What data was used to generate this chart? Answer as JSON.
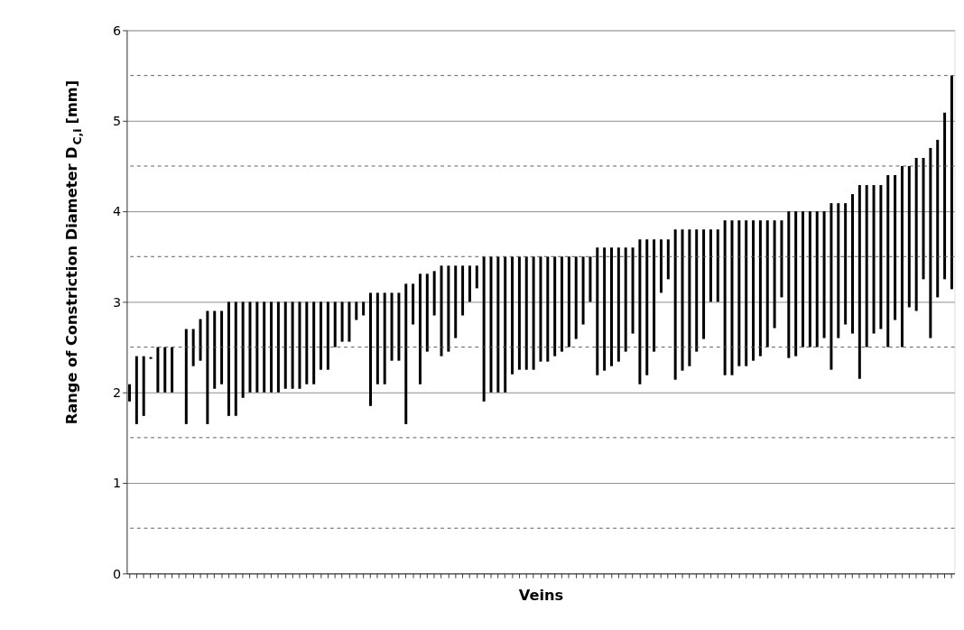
{
  "chart_data": {
    "type": "bar",
    "xlabel": "Veins",
    "ylabel": "Range of Constriction Diameter D$_{C,i}$ [mm]",
    "categories": [
      null,
      null,
      null,
      null,
      null,
      null,
      null,
      null,
      null,
      null,
      null,
      null,
      null,
      null,
      null,
      null,
      null,
      null,
      null,
      null,
      null,
      null,
      null,
      null,
      null,
      null,
      null,
      null,
      null,
      null,
      null,
      null,
      null,
      null,
      null,
      null,
      null,
      null,
      null,
      null,
      null,
      null,
      null,
      null,
      null,
      null,
      null,
      null,
      null,
      null,
      null,
      null,
      null,
      null,
      null,
      null,
      null,
      null,
      null,
      null,
      null,
      null,
      null,
      null,
      null,
      null,
      null,
      null,
      null,
      null,
      null,
      null,
      null,
      null,
      null,
      null,
      null,
      null,
      null,
      null,
      null,
      null,
      null,
      null,
      null,
      null,
      null,
      null,
      null,
      null,
      null,
      null,
      null,
      null,
      null,
      null,
      null,
      null,
      null,
      null,
      null,
      null,
      null,
      null,
      null,
      null,
      null,
      null,
      null,
      null,
      null,
      null,
      null,
      null,
      null,
      null,
      null
    ],
    "base": [
      1.9,
      1.65,
      1.74,
      2.37,
      2.0,
      2.0,
      2.0,
      null,
      1.65,
      2.29,
      2.35,
      1.65,
      2.04,
      2.09,
      1.74,
      1.74,
      1.94,
      2.0,
      2.0,
      2.0,
      2.0,
      2.0,
      2.04,
      2.04,
      2.04,
      2.09,
      2.09,
      2.25,
      2.25,
      2.5,
      2.56,
      2.56,
      2.8,
      2.85,
      1.85,
      2.09,
      2.09,
      2.35,
      2.35,
      1.65,
      2.75,
      2.09,
      2.45,
      2.85,
      2.4,
      2.45,
      2.6,
      2.85,
      3.0,
      3.15,
      1.9,
      2.0,
      2.0,
      2.0,
      2.2,
      2.25,
      2.25,
      2.25,
      2.34,
      2.34,
      2.4,
      2.45,
      2.5,
      2.59,
      2.75,
      3.0,
      2.19,
      2.24,
      2.29,
      2.34,
      2.45,
      2.65,
      2.09,
      2.19,
      2.45,
      3.1,
      3.25,
      2.14,
      2.24,
      2.29,
      2.45,
      2.59,
      3.0,
      3.0,
      2.19,
      2.19,
      2.29,
      2.29,
      2.35,
      2.4,
      2.5,
      2.71,
      3.05,
      2.38,
      2.4,
      2.5,
      2.5,
      2.5,
      2.6,
      2.25,
      2.6,
      2.75,
      2.65,
      2.15,
      2.5,
      2.65,
      2.7,
      2.5,
      2.8,
      2.5,
      2.94,
      2.9,
      3.25,
      2.6,
      3.05,
      3.25,
      3.14
    ],
    "values": [
      0.19,
      0.75,
      0.66,
      0.02,
      0.5,
      0.5,
      0.5,
      null,
      1.05,
      0.41,
      0.46,
      1.25,
      0.86,
      0.81,
      1.26,
      1.26,
      1.06,
      1.0,
      1.0,
      1.0,
      1.0,
      1.0,
      0.96,
      0.96,
      0.96,
      0.91,
      0.91,
      0.75,
      0.75,
      0.5,
      0.44,
      0.44,
      0.2,
      0.15,
      1.25,
      1.01,
      1.01,
      0.75,
      0.75,
      1.55,
      0.45,
      1.22,
      0.86,
      0.49,
      1.0,
      0.95,
      0.8,
      0.55,
      0.4,
      0.25,
      1.6,
      1.5,
      1.5,
      1.5,
      1.3,
      1.25,
      1.25,
      1.25,
      1.16,
      1.16,
      1.1,
      1.05,
      1.0,
      0.91,
      0.75,
      0.5,
      1.41,
      1.36,
      1.31,
      1.26,
      1.15,
      0.95,
      1.6,
      1.5,
      1.24,
      0.59,
      0.44,
      1.66,
      1.56,
      1.51,
      1.35,
      1.21,
      0.8,
      0.8,
      1.71,
      1.71,
      1.61,
      1.61,
      1.55,
      1.5,
      1.4,
      1.19,
      0.85,
      1.62,
      1.6,
      1.5,
      1.5,
      1.5,
      1.4,
      1.84,
      1.49,
      1.34,
      1.54,
      2.14,
      1.79,
      1.64,
      1.59,
      1.9,
      1.6,
      2.0,
      1.56,
      1.69,
      1.34,
      2.1,
      1.74,
      1.84,
      2.36
    ],
    "color": "#000000",
    "ylim": [
      0,
      6
    ],
    "yticks": [
      0,
      1,
      2,
      3,
      4,
      5,
      6
    ],
    "grid": "y",
    "tick_labels": "y",
    "ref_lines": [
      {
        "axis": "y",
        "value": 0.5,
        "color": "#555555",
        "line_style": "dashed"
      },
      {
        "axis": "y",
        "value": 1.5,
        "color": "#555555",
        "line_style": "dashed"
      },
      {
        "axis": "y",
        "value": 2.5,
        "color": "#555555",
        "line_style": "dashed"
      },
      {
        "axis": "y",
        "value": 3.5,
        "color": "#555555",
        "line_style": "dashed"
      },
      {
        "axis": "y",
        "value": 4.5,
        "color": "#555555",
        "line_style": "dashed"
      },
      {
        "axis": "y",
        "value": 5.5,
        "color": "#555555",
        "line_style": "dashed"
      }
    ]
  }
}
